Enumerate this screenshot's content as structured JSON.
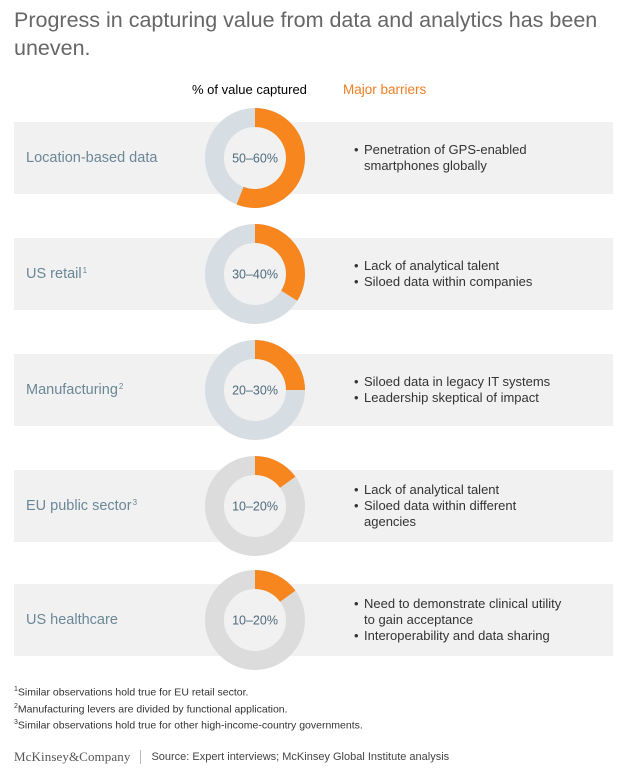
{
  "title": "Progress in capturing value from data and analytics has been uneven.",
  "column_headers": {
    "value": "% of value captured",
    "barriers": "Major barriers"
  },
  "colors": {
    "accent": "#f7861e",
    "track_blue": "#d6dde3",
    "track_gray": "#dcdcdc",
    "row_bg": "#f1f1f1",
    "label": "#6b8797",
    "barrier_header": "#ef7d22"
  },
  "rows": [
    {
      "label": "Location-based data",
      "footnote": "",
      "range": "50–60%",
      "captured_fraction": 0.56,
      "track": "blue",
      "barriers": [
        "Penetration of GPS-enabled smartphones globally"
      ]
    },
    {
      "label": "US retail",
      "footnote": "1",
      "range": "30–40%",
      "captured_fraction": 0.34,
      "track": "blue",
      "barriers": [
        "Lack of analytical talent",
        "Siloed data within companies"
      ]
    },
    {
      "label": "Manufacturing",
      "footnote": "2",
      "range": "20–30%",
      "captured_fraction": 0.25,
      "track": "blue",
      "barriers": [
        "Siloed data in legacy IT systems",
        "Leadership skeptical of impact"
      ]
    },
    {
      "label": "EU public sector",
      "footnote": "3",
      "range": "10–20%",
      "captured_fraction": 0.15,
      "track": "gray",
      "barriers": [
        "Lack of analytical talent",
        "Siloed data within different agencies"
      ]
    },
    {
      "label": "US healthcare",
      "footnote": "",
      "range": "10–20%",
      "captured_fraction": 0.15,
      "track": "gray",
      "barriers": [
        "Need to demonstrate clinical utility to gain acceptance",
        "Interoperability and data sharing"
      ]
    }
  ],
  "footnotes": [
    {
      "mark": "1",
      "text": "Similar observations hold true for EU retail sector."
    },
    {
      "mark": "2",
      "text": "Manufacturing levers are divided by functional application."
    },
    {
      "mark": "3",
      "text": "Similar observations hold true for other high-income-country governments."
    }
  ],
  "footer": {
    "logo": "McKinsey&Company",
    "source": "Source: Expert interviews; McKinsey Global Institute analysis"
  },
  "chart_data": {
    "type": "donut",
    "categories": [
      "Location-based data",
      "US retail",
      "Manufacturing",
      "EU public sector",
      "US healthcare"
    ],
    "value_labels": [
      "50–60%",
      "30–40%",
      "20–30%",
      "10–20%",
      "10–20%"
    ],
    "values": [
      0.56,
      0.34,
      0.25,
      0.15,
      0.15
    ],
    "ylabel": "% of value captured"
  }
}
